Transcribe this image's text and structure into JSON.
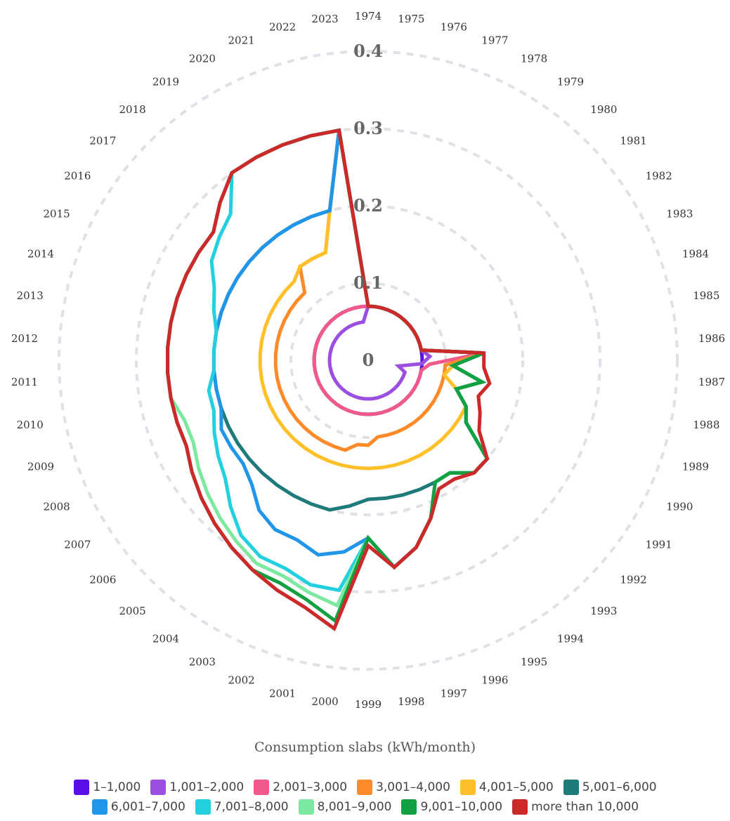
{
  "chart_data": {
    "type": "radar",
    "years": [
      "1974",
      "1975",
      "1976",
      "1977",
      "1978",
      "1979",
      "1980",
      "1981",
      "1982",
      "1983",
      "1984",
      "1985",
      "1986",
      "1987",
      "1988",
      "1989",
      "1990",
      "1991",
      "1992",
      "1993",
      "1994",
      "1995",
      "1996",
      "1997",
      "1998",
      "1999",
      "2000",
      "2001",
      "2002",
      "2003",
      "2004",
      "2005",
      "2006",
      "2007",
      "2008",
      "2009",
      "2010",
      "2011",
      "2012",
      "2013",
      "2014",
      "2015",
      "2016",
      "2017",
      "2018",
      "2019",
      "2020",
      "2021",
      "2022",
      "2023"
    ],
    "radial_ticks": [
      "0",
      "0.1",
      "0.2",
      "0.3",
      "0.4"
    ],
    "radial_max": 0.4,
    "legend_title": "Consumption slabs (kWh/month)",
    "series": [
      {
        "name": "1–1,000",
        "color": "#5b0fe8",
        "values": [
          0.07,
          0.07,
          0.07,
          0.07,
          0.07,
          0.07,
          0.07,
          0.07,
          0.07,
          0.07,
          0.07,
          0.07,
          0.07,
          0.07,
          0.07,
          0.07,
          0.07,
          0.07,
          0.07,
          0.07,
          0.07,
          0.07,
          0.07,
          0.07,
          0.07,
          0.07,
          0.07,
          0.07,
          0.07,
          0.07,
          0.07,
          0.07,
          0.07,
          0.07,
          0.07,
          0.07,
          0.07,
          0.07,
          0.07,
          0.07,
          0.07,
          0.07,
          0.07,
          0.07,
          0.07,
          0.07,
          0.07,
          0.07,
          0.07,
          0.07
        ]
      },
      {
        "name": "1,001–2,000",
        "color": "#9b4fe0",
        "values": [
          0.07,
          0.07,
          0.07,
          0.07,
          0.07,
          0.07,
          0.07,
          0.07,
          0.07,
          0.07,
          0.07,
          0.07,
          0.08,
          0.07,
          0.04,
          0.05,
          0.05,
          0.05,
          0.05,
          0.05,
          0.05,
          0.05,
          0.05,
          0.05,
          0.05,
          0.05,
          0.05,
          0.05,
          0.05,
          0.05,
          0.05,
          0.05,
          0.05,
          0.05,
          0.05,
          0.05,
          0.05,
          0.05,
          0.05,
          0.05,
          0.05,
          0.05,
          0.05,
          0.05,
          0.05,
          0.05,
          0.05,
          0.05,
          0.05,
          0.05
        ]
      },
      {
        "name": "2,001–3,000",
        "color": "#f05a8a",
        "values": [
          0.07,
          0.07,
          0.07,
          0.07,
          0.07,
          0.07,
          0.07,
          0.07,
          0.07,
          0.07,
          0.07,
          0.07,
          0.15,
          0.08,
          0.07,
          0.07,
          0.07,
          0.07,
          0.07,
          0.07,
          0.07,
          0.07,
          0.07,
          0.07,
          0.07,
          0.07,
          0.07,
          0.07,
          0.07,
          0.07,
          0.07,
          0.07,
          0.07,
          0.07,
          0.07,
          0.07,
          0.07,
          0.07,
          0.07,
          0.07,
          0.07,
          0.07,
          0.07,
          0.07,
          0.07,
          0.07,
          0.07,
          0.07,
          0.07,
          0.07
        ]
      },
      {
        "name": "3,001–4,000",
        "color": "#ff8a2a",
        "values": [
          0.07,
          0.07,
          0.07,
          0.07,
          0.07,
          0.07,
          0.07,
          0.07,
          0.07,
          0.07,
          0.07,
          0.07,
          0.15,
          0.1,
          0.1,
          0.1,
          0.1,
          0.1,
          0.1,
          0.1,
          0.1,
          0.1,
          0.1,
          0.1,
          0.1,
          0.11,
          0.11,
          0.12,
          0.12,
          0.12,
          0.12,
          0.12,
          0.12,
          0.12,
          0.12,
          0.12,
          0.12,
          0.12,
          0.12,
          0.12,
          0.12,
          0.12,
          0.12,
          0.12,
          0.12,
          0.15,
          0.15,
          0.15,
          0.2,
          0.3
        ]
      },
      {
        "name": "4,001–5,000",
        "color": "#ffc02a",
        "values": [
          0.07,
          0.07,
          0.07,
          0.07,
          0.07,
          0.07,
          0.07,
          0.07,
          0.07,
          0.07,
          0.07,
          0.07,
          0.15,
          0.11,
          0.1,
          0.12,
          0.14,
          0.14,
          0.14,
          0.14,
          0.14,
          0.14,
          0.14,
          0.14,
          0.14,
          0.14,
          0.14,
          0.14,
          0.14,
          0.14,
          0.14,
          0.14,
          0.14,
          0.14,
          0.14,
          0.14,
          0.14,
          0.14,
          0.14,
          0.14,
          0.14,
          0.14,
          0.14,
          0.14,
          0.14,
          0.15,
          0.15,
          0.15,
          0.2,
          0.3
        ]
      },
      {
        "name": "5,001–6,000",
        "color": "#1f7a7a",
        "values": [
          0.07,
          0.07,
          0.07,
          0.07,
          0.07,
          0.07,
          0.07,
          0.07,
          0.07,
          0.07,
          0.07,
          0.07,
          0.15,
          0.11,
          0.15,
          0.12,
          0.14,
          0.15,
          0.2,
          0.2,
          0.18,
          0.18,
          0.18,
          0.18,
          0.18,
          0.18,
          0.19,
          0.2,
          0.2,
          0.2,
          0.2,
          0.2,
          0.2,
          0.2,
          0.2,
          0.2,
          0.2,
          0.2,
          0.2,
          0.2,
          0.2,
          0.2,
          0.2,
          0.2,
          0.2,
          0.2,
          0.2,
          0.2,
          0.2,
          0.3
        ]
      },
      {
        "name": "6,001–7,000",
        "color": "#2196e8",
        "values": [
          0.07,
          0.07,
          0.07,
          0.07,
          0.07,
          0.07,
          0.07,
          0.07,
          0.07,
          0.07,
          0.07,
          0.07,
          0.15,
          0.11,
          0.15,
          0.12,
          0.14,
          0.15,
          0.2,
          0.2,
          0.18,
          0.18,
          0.22,
          0.25,
          0.27,
          0.23,
          0.25,
          0.26,
          0.25,
          0.25,
          0.24,
          0.22,
          0.21,
          0.21,
          0.21,
          0.2,
          0.2,
          0.2,
          0.2,
          0.2,
          0.2,
          0.2,
          0.2,
          0.2,
          0.2,
          0.2,
          0.2,
          0.2,
          0.2,
          0.3
        ]
      },
      {
        "name": "7,001–8,000",
        "color": "#22d0e0",
        "values": [
          0.07,
          0.07,
          0.07,
          0.07,
          0.07,
          0.07,
          0.07,
          0.07,
          0.07,
          0.07,
          0.07,
          0.07,
          0.15,
          0.11,
          0.15,
          0.12,
          0.14,
          0.15,
          0.2,
          0.2,
          0.18,
          0.18,
          0.22,
          0.25,
          0.27,
          0.23,
          0.3,
          0.3,
          0.29,
          0.29,
          0.28,
          0.26,
          0.24,
          0.23,
          0.22,
          0.21,
          0.21,
          0.2,
          0.2,
          0.2,
          0.21,
          0.22,
          0.24,
          0.25,
          0.26,
          0.3,
          0.3,
          0.3,
          0.3,
          0.3
        ]
      },
      {
        "name": "8,001–9,000",
        "color": "#7de8a0",
        "values": [
          0.07,
          0.07,
          0.07,
          0.07,
          0.07,
          0.07,
          0.07,
          0.07,
          0.07,
          0.07,
          0.07,
          0.07,
          0.15,
          0.11,
          0.15,
          0.12,
          0.14,
          0.15,
          0.2,
          0.2,
          0.18,
          0.18,
          0.22,
          0.25,
          0.27,
          0.23,
          0.32,
          0.31,
          0.3,
          0.3,
          0.29,
          0.28,
          0.27,
          0.26,
          0.25,
          0.25,
          0.26,
          0.26,
          0.26,
          0.26,
          0.26,
          0.26,
          0.26,
          0.26,
          0.28,
          0.3,
          0.3,
          0.3,
          0.3,
          0.3
        ]
      },
      {
        "name": "9,001–10,000",
        "color": "#12a040",
        "values": [
          0.07,
          0.07,
          0.07,
          0.07,
          0.07,
          0.07,
          0.07,
          0.07,
          0.07,
          0.07,
          0.07,
          0.07,
          0.15,
          0.11,
          0.15,
          0.12,
          0.14,
          0.15,
          0.2,
          0.2,
          0.18,
          0.18,
          0.22,
          0.25,
          0.27,
          0.23,
          0.34,
          0.32,
          0.31,
          0.31,
          0.3,
          0.29,
          0.28,
          0.27,
          0.26,
          0.26,
          0.26,
          0.26,
          0.26,
          0.26,
          0.26,
          0.26,
          0.26,
          0.26,
          0.28,
          0.3,
          0.3,
          0.3,
          0.3,
          0.3
        ]
      },
      {
        "name": "more than 10,000",
        "color": "#cc2a2a",
        "values": [
          0.07,
          0.07,
          0.07,
          0.07,
          0.07,
          0.07,
          0.07,
          0.07,
          0.07,
          0.07,
          0.07,
          0.07,
          0.15,
          0.15,
          0.16,
          0.15,
          0.16,
          0.17,
          0.2,
          0.2,
          0.19,
          0.19,
          0.22,
          0.25,
          0.27,
          0.24,
          0.35,
          0.33,
          0.32,
          0.31,
          0.3,
          0.29,
          0.28,
          0.27,
          0.26,
          0.26,
          0.26,
          0.26,
          0.26,
          0.26,
          0.26,
          0.26,
          0.26,
          0.26,
          0.28,
          0.3,
          0.3,
          0.3,
          0.3,
          0.3
        ]
      }
    ]
  }
}
